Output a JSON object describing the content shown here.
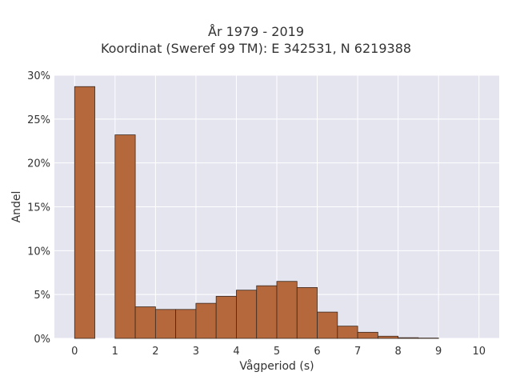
{
  "chart_data": {
    "type": "bar",
    "title": "År 1979 - 2019",
    "subtitle": "Koordinat (Sweref 99 TM): E 342531, N 6219388",
    "xlabel": "Vågperiod (s)",
    "ylabel": "Andel",
    "xlim": [
      -0.5,
      10.5
    ],
    "ylim": [
      0,
      30
    ],
    "x_ticks": [
      "0",
      "1",
      "2",
      "3",
      "4",
      "5",
      "6",
      "7",
      "8",
      "9",
      "10"
    ],
    "x_tick_values": [
      0,
      1,
      2,
      3,
      4,
      5,
      6,
      7,
      8,
      9,
      10
    ],
    "y_ticks": [
      "0%",
      "5%",
      "10%",
      "15%",
      "20%",
      "25%",
      "30%"
    ],
    "y_tick_values": [
      0,
      5,
      10,
      15,
      20,
      25,
      30
    ],
    "bin_width": 0.5,
    "bins": [
      {
        "start": 0.0,
        "value": 28.7
      },
      {
        "start": 0.5,
        "value": 0.0
      },
      {
        "start": 1.0,
        "value": 23.2
      },
      {
        "start": 1.5,
        "value": 3.6
      },
      {
        "start": 2.0,
        "value": 3.3
      },
      {
        "start": 2.5,
        "value": 3.3
      },
      {
        "start": 3.0,
        "value": 4.0
      },
      {
        "start": 3.5,
        "value": 4.8
      },
      {
        "start": 4.0,
        "value": 5.5
      },
      {
        "start": 4.5,
        "value": 6.0
      },
      {
        "start": 5.0,
        "value": 6.5
      },
      {
        "start": 5.5,
        "value": 5.8
      },
      {
        "start": 6.0,
        "value": 3.0
      },
      {
        "start": 6.5,
        "value": 1.4
      },
      {
        "start": 7.0,
        "value": 0.7
      },
      {
        "start": 7.5,
        "value": 0.25
      },
      {
        "start": 8.0,
        "value": 0.08
      },
      {
        "start": 8.5,
        "value": 0.04
      }
    ],
    "bar_color": "#b5683b",
    "bar_edge_color": "#3a2a20",
    "plot_background": "#e5e5f0",
    "grid": true,
    "grid_color": "#ffffff"
  }
}
